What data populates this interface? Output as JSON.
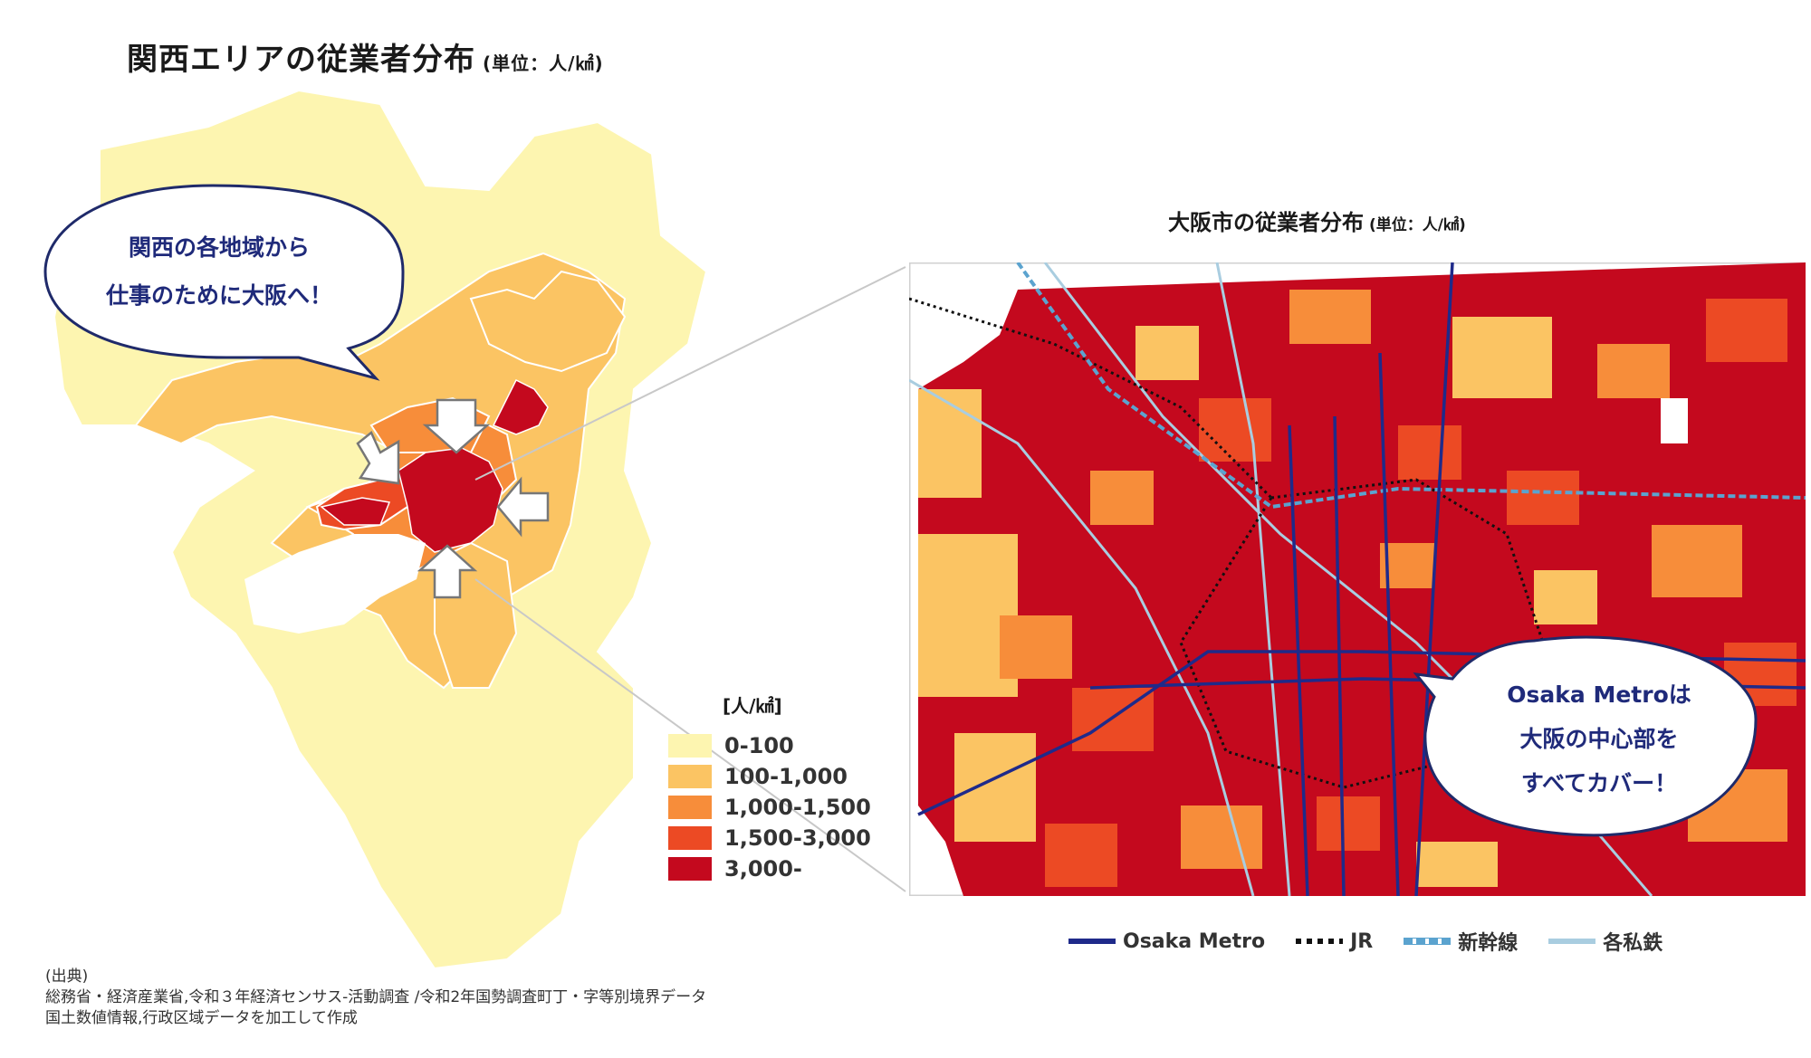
{
  "left_map": {
    "title": "関西エリアの従業者分布",
    "unit": "(単位：人/㎢)",
    "callout_line1": "関西の各地域から",
    "callout_line2": "仕事のために大阪へ！"
  },
  "right_map": {
    "title": "大阪市の従業者分布",
    "unit": "(単位：人/㎢)",
    "callout_line1": "Osaka Metroは",
    "callout_line2": "大阪の中心部を",
    "callout_line3": "すべてカバー！"
  },
  "density_legend": {
    "title": "[人/㎢]",
    "items": [
      {
        "label": "0-100",
        "color": "#fdf5b0"
      },
      {
        "label": "100-1,000",
        "color": "#fbc463"
      },
      {
        "label": "1,000-1,500",
        "color": "#f78d3a"
      },
      {
        "label": "1,500-3,000",
        "color": "#ec4a24"
      },
      {
        "label": "3,000-",
        "color": "#c4091e"
      }
    ]
  },
  "line_legend": {
    "items": [
      {
        "label": "Osaka Metro",
        "color": "#1f2a8a",
        "style": "solid"
      },
      {
        "label": "JR",
        "color": "#111111",
        "style": "dotted"
      },
      {
        "label": "新幹線",
        "color": "#5ba3cf",
        "style": "dashed"
      },
      {
        "label": "各私鉄",
        "color": "#a9cde0",
        "style": "solid"
      }
    ]
  },
  "source": {
    "line1": "(出典)",
    "line2": "総務省・経済産業省,令和３年経済センサス‐活動調査 /令和2年国勢調査町丁・字等別境界データ",
    "line3": "国土数値情報,行政区域データを加工して作成"
  }
}
